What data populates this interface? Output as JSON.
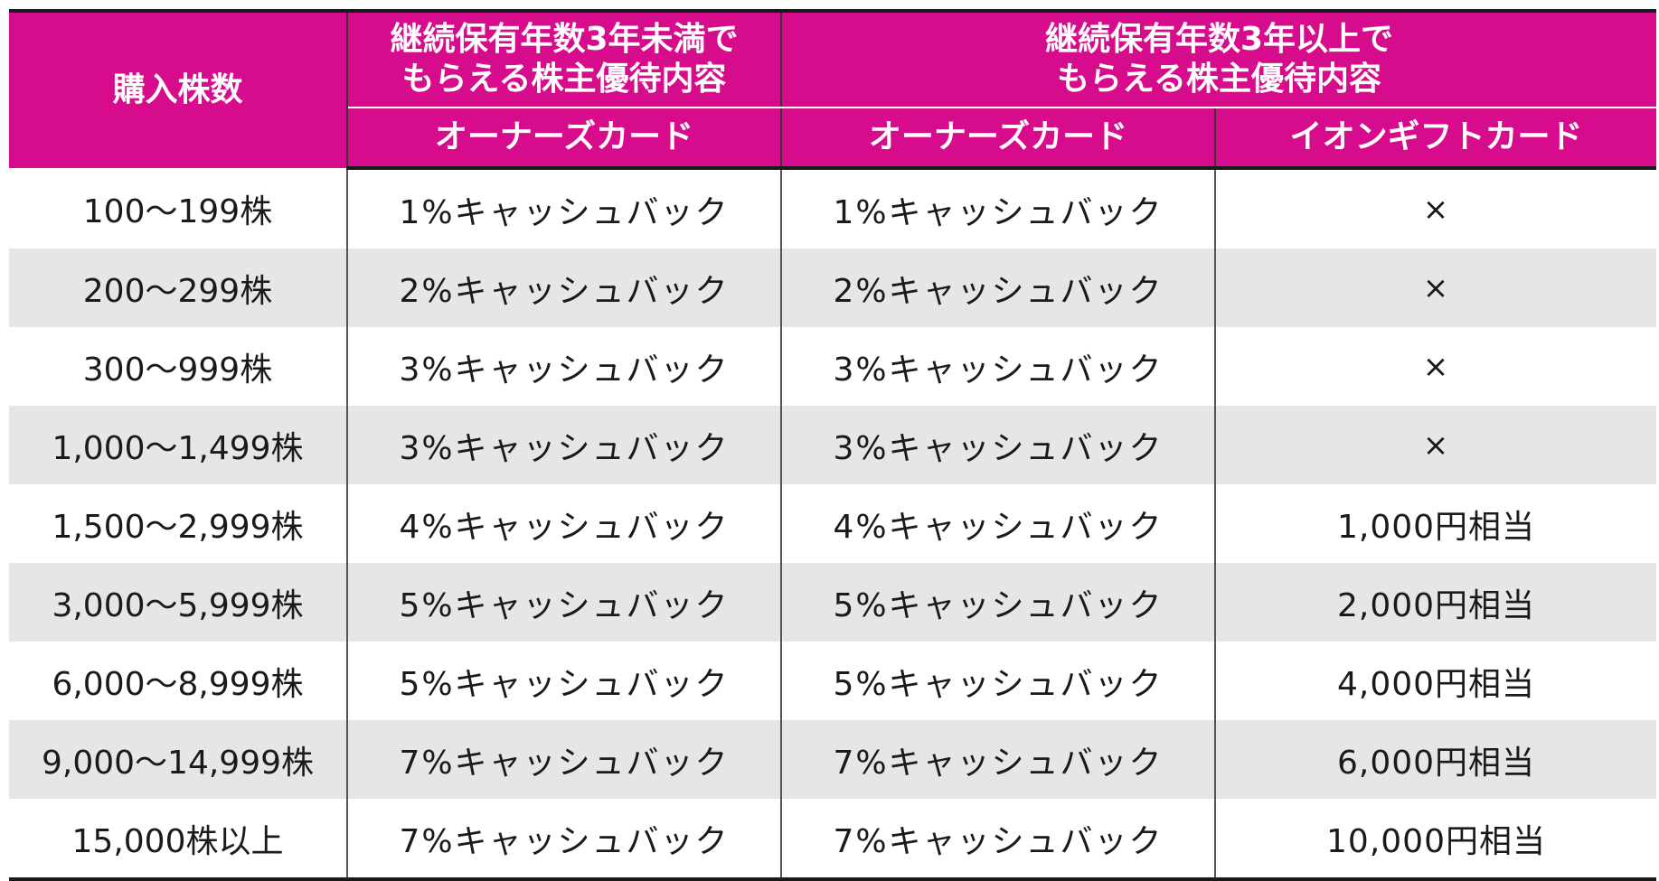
{
  "header": {
    "col_shares": "購入株数",
    "group_under3": {
      "line1": "継続保有年数3年未満で",
      "line2": "もらえる株主優待内容"
    },
    "group_over3": {
      "line1": "継続保有年数3年以上で",
      "line2": "もらえる株主優待内容"
    },
    "sub_owners_card_1": "オーナーズカード",
    "sub_owners_card_2": "オーナーズカード",
    "sub_gift_card": "イオンギフトカード"
  },
  "rows": [
    {
      "shares": "100～199株",
      "under3": "1%キャッシュバック",
      "over3": "1%キャッシュバック",
      "gift": "×"
    },
    {
      "shares": "200～299株",
      "under3": "2%キャッシュバック",
      "over3": "2%キャッシュバック",
      "gift": "×"
    },
    {
      "shares": "300～999株",
      "under3": "3%キャッシュバック",
      "over3": "3%キャッシュバック",
      "gift": "×"
    },
    {
      "shares": "1,000～1,499株",
      "under3": "3%キャッシュバック",
      "over3": "3%キャッシュバック",
      "gift": "×"
    },
    {
      "shares": "1,500～2,999株",
      "under3": "4%キャッシュバック",
      "over3": "4%キャッシュバック",
      "gift": "1,000円相当"
    },
    {
      "shares": "3,000～5,999株",
      "under3": "5%キャッシュバック",
      "over3": "5%キャッシュバック",
      "gift": "2,000円相当"
    },
    {
      "shares": "6,000～8,999株",
      "under3": "5%キャッシュバック",
      "over3": "5%キャッシュバック",
      "gift": "4,000円相当"
    },
    {
      "shares": "9,000～14,999株",
      "under3": "7%キャッシュバック",
      "over3": "7%キャッシュバック",
      "gift": "6,000円相当"
    },
    {
      "shares": "15,000株以上",
      "under3": "7%キャッシュバック",
      "over3": "7%キャッシュバック",
      "gift": "10,000円相当"
    }
  ],
  "colors": {
    "header_bg": "#d70c8d",
    "header_text": "#ffffff",
    "stripe_bg": "#e6e6e6"
  }
}
